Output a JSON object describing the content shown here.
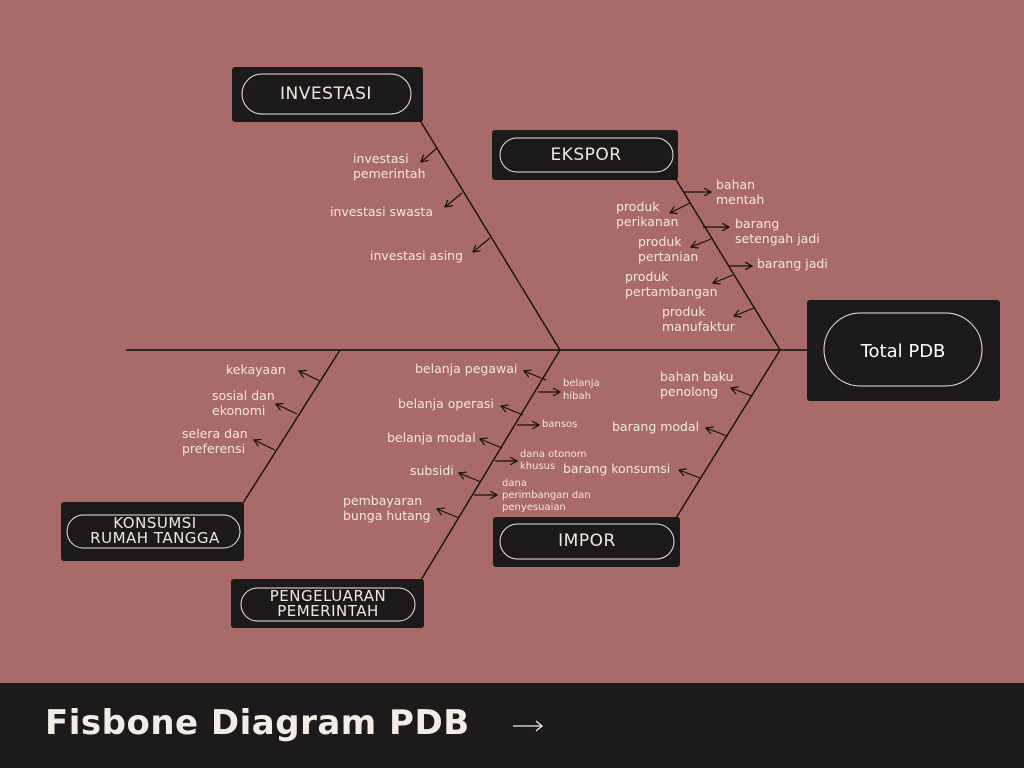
{
  "effect": "Total PDB",
  "categories": {
    "investasi": {
      "label": "INVESTASI",
      "causes": [
        [
          "investasi",
          "pemerintah"
        ],
        [
          "investasi swasta"
        ],
        [
          "investasi asing"
        ]
      ]
    },
    "ekspor": {
      "label": "EKSPOR",
      "causes": [
        [
          "bahan",
          "mentah"
        ],
        [
          "produk",
          "perikanan"
        ],
        [
          "barang",
          "setengah jadi"
        ],
        [
          "produk",
          "pertanian"
        ],
        [
          "barang jadi"
        ],
        [
          "produk",
          "pertambangan"
        ],
        [
          "produk",
          "manufaktur"
        ]
      ]
    },
    "konsumsi": {
      "label": [
        "KONSUMSI",
        "RUMAH TANGGA"
      ],
      "causes": [
        [
          "kekayaan"
        ],
        [
          "sosial dan",
          "ekonomi"
        ],
        [
          "selera dan",
          "preferensi"
        ]
      ]
    },
    "pemerintah": {
      "label": [
        "PENGELUARAN",
        "PEMERINTAH"
      ],
      "causes": [
        [
          "belanja pegawai"
        ],
        [
          "belanja operasi"
        ],
        [
          "belanja modal"
        ],
        [
          "subsidi"
        ],
        [
          "pembayaran",
          "bunga hutang"
        ]
      ],
      "transfers": [
        [
          "belanja",
          "hibah"
        ],
        [
          "bansos"
        ],
        [
          "dana otonom",
          "khusus"
        ],
        [
          "dana",
          "perimbangan dan",
          "penyesuaian"
        ]
      ]
    },
    "impor": {
      "label": "IMPOR",
      "causes": [
        [
          "bahan baku",
          "penolong"
        ],
        [
          "barang modal"
        ],
        [
          "barang konsumsi"
        ]
      ]
    }
  },
  "footer": {
    "title": "Fisbone Diagram PDB",
    "arrow_icon": "long-right-arrow"
  }
}
